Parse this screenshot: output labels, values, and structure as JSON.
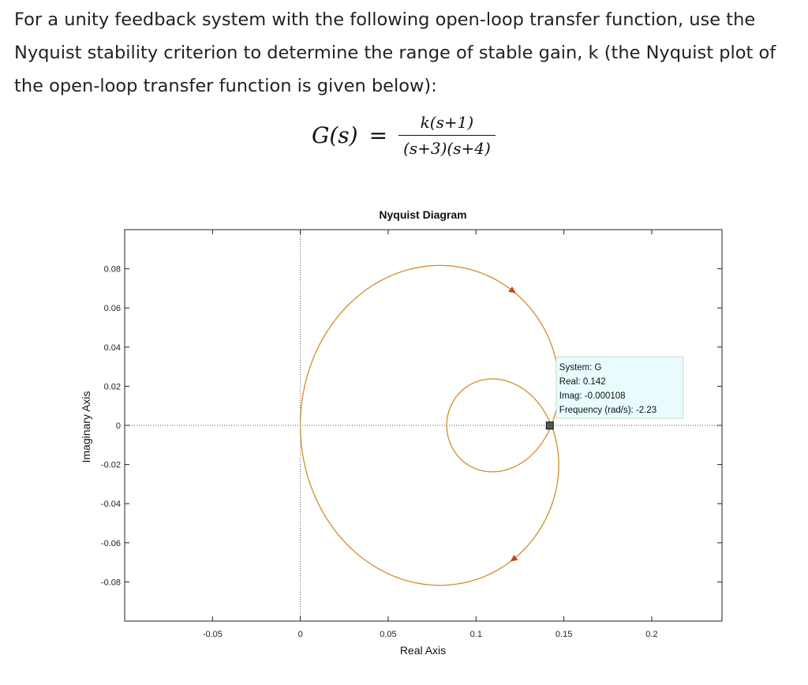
{
  "question": {
    "text": "For a unity feedback system with the following open-loop transfer function, use the Nyquist stability criterion to determine the range of stable gain, k (the Nyquist plot of the open-loop transfer function is given below):"
  },
  "equation": {
    "lhs": "G(s)",
    "equals": "=",
    "numerator": "k(s+1)",
    "denominator": "(s+3)(s+4)"
  },
  "chart_data": {
    "type": "line",
    "title": "Nyquist Diagram",
    "xlabel": "Real Axis",
    "ylabel": "Imaginary Axis",
    "xlim": [
      -0.1,
      0.24
    ],
    "ylim": [
      -0.1,
      0.1
    ],
    "xticks": [
      -0.05,
      0,
      0.05,
      0.1,
      0.15,
      0.2
    ],
    "xtick_labels": [
      "-0.05",
      "0",
      "0.05",
      "0.1",
      "0.15",
      "0.2"
    ],
    "yticks": [
      0.08,
      0.06,
      0.04,
      0.02,
      0,
      -0.02,
      -0.04,
      -0.06,
      -0.08
    ],
    "ytick_labels": [
      "0.08",
      "0.06",
      "0.04",
      "0.02",
      "0",
      "-0.02",
      "-0.04",
      "-0.06",
      "-0.08"
    ],
    "grid": false,
    "series": [
      {
        "transfer_function": "(s+1)/((s+3)(s+4))",
        "color": "#d08f27",
        "arrow_color": "#c8451e"
      }
    ],
    "datatip": {
      "lines": [
        "System: G",
        "Real: 0.142",
        "Imag: -0.000108",
        "Frequency (rad/s): -2.23"
      ],
      "real": 0.142,
      "imag": -0.000108
    }
  }
}
